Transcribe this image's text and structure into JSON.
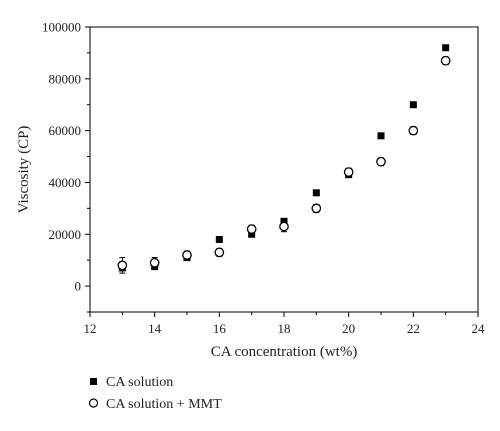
{
  "chart_data": {
    "type": "scatter",
    "xlabel": "CA concentration (wt%)",
    "ylabel": "Viscosity (CP)",
    "xlim": [
      12,
      24
    ],
    "ylim": [
      -10000,
      100000
    ],
    "xticks": [
      12,
      14,
      16,
      18,
      20,
      22,
      24
    ],
    "yticks": [
      0,
      20000,
      40000,
      60000,
      80000,
      100000
    ],
    "legend_position": "bottom-left, below plot",
    "grid": false,
    "series": [
      {
        "name": "CA solution",
        "marker": "filled-square",
        "color": "#000000",
        "x": [
          13,
          14,
          15,
          16,
          17,
          18,
          19,
          20,
          21,
          22,
          23
        ],
        "y": [
          7000,
          7500,
          11000,
          18000,
          20000,
          25000,
          36000,
          43000,
          58000,
          70000,
          92000
        ]
      },
      {
        "name": "CA solution + MMT",
        "marker": "open-circle",
        "color": "#000000",
        "x": [
          13,
          14,
          15,
          16,
          17,
          18,
          19,
          20,
          21,
          22,
          23
        ],
        "y": [
          8000,
          9000,
          12000,
          13000,
          22000,
          23000,
          30000,
          44000,
          48000,
          60000,
          87000
        ],
        "error": [
          3000,
          2000,
          1500,
          1500,
          1500,
          2000,
          1500,
          1500,
          1500,
          1500,
          1500
        ]
      }
    ]
  }
}
